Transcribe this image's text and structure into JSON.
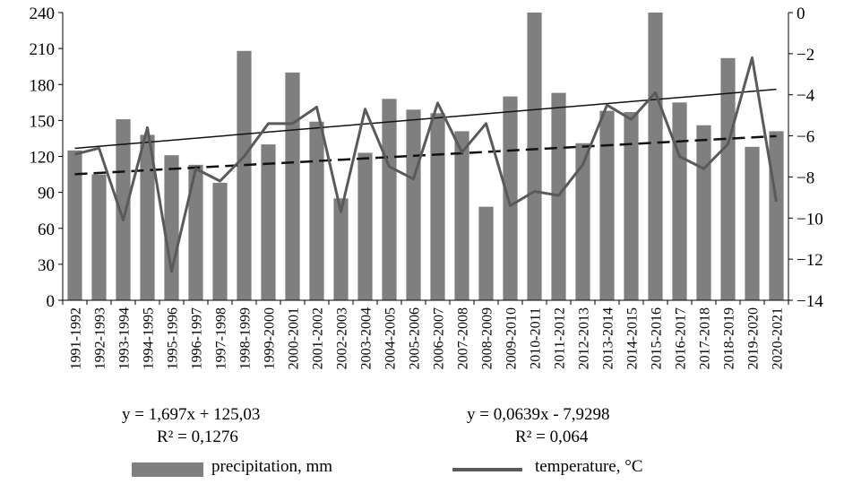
{
  "chart_data": {
    "type": "bar+line",
    "categories": [
      "1991-1992",
      "1992-1993",
      "1993-1994",
      "1994-1995",
      "1995-1996",
      "1996-1997",
      "1997-1998",
      "1998-1999",
      "1999-2000",
      "2000-2001",
      "2001-2002",
      "2002-2003",
      "2003-2004",
      "2004-2005",
      "2005-2006",
      "2006-2007",
      "2007-2008",
      "2008-2009",
      "2009-2010",
      "2010-2011",
      "2011-2012",
      "2012-2013",
      "2013-2014",
      "2014-2015",
      "2015-2016",
      "2016-2017",
      "2017-2018",
      "2018-2019",
      "2019-2020",
      "2020-2021"
    ],
    "series": [
      {
        "name": "precipitation, mm",
        "type": "bar",
        "axis": "left",
        "values": [
          125,
          105,
          151,
          138,
          121,
          113,
          98,
          208,
          130,
          190,
          149,
          85,
          123,
          168,
          159,
          156,
          141,
          78,
          170,
          248,
          173,
          131,
          158,
          157,
          248,
          165,
          146,
          202,
          128,
          141
        ]
      },
      {
        "name": "temperature, °C",
        "type": "line",
        "axis": "right",
        "values": [
          -6.9,
          -6.6,
          -10.1,
          -5.6,
          -12.6,
          -7.6,
          -8.2,
          -7.0,
          -5.4,
          -5.4,
          -4.6,
          -9.7,
          -4.7,
          -7.5,
          -8.1,
          -4.4,
          -6.8,
          -5.4,
          -9.4,
          -8.7,
          -8.9,
          -7.4,
          -4.5,
          -5.2,
          -3.9,
          -7.0,
          -7.6,
          -6.4,
          -2.2,
          -9.2
        ]
      }
    ],
    "trendlines": [
      {
        "series": "precipitation, mm",
        "style": "solid",
        "slope": 1.697,
        "intercept": 125.03
      },
      {
        "series": "temperature, °C",
        "style": "dashed",
        "slope": 0.0639,
        "intercept": -7.9298
      }
    ],
    "y_left": {
      "min": 0,
      "max": 240,
      "ticks": [
        0,
        30,
        60,
        90,
        120,
        150,
        180,
        210,
        240
      ]
    },
    "y_right": {
      "min": -14,
      "max": 0,
      "ticks": [
        0,
        -2,
        -4,
        -6,
        -8,
        -10,
        -12,
        -14
      ]
    },
    "grid": false,
    "legend_position": "bottom",
    "colors": {
      "bars": "#7f7f7f",
      "temperature_line": "#5a5a5a",
      "trend": "#111111"
    }
  },
  "equations": {
    "precipitation_eq": "y = 1,697x + 125,03",
    "precipitation_r2": "R² = 0,1276",
    "temperature_eq": "y = 0,0639x - 7,9298",
    "temperature_r2": "R² = 0,064"
  },
  "legend": {
    "precipitation_label": "precipitation, mm",
    "temperature_label": "temperature, °C"
  }
}
